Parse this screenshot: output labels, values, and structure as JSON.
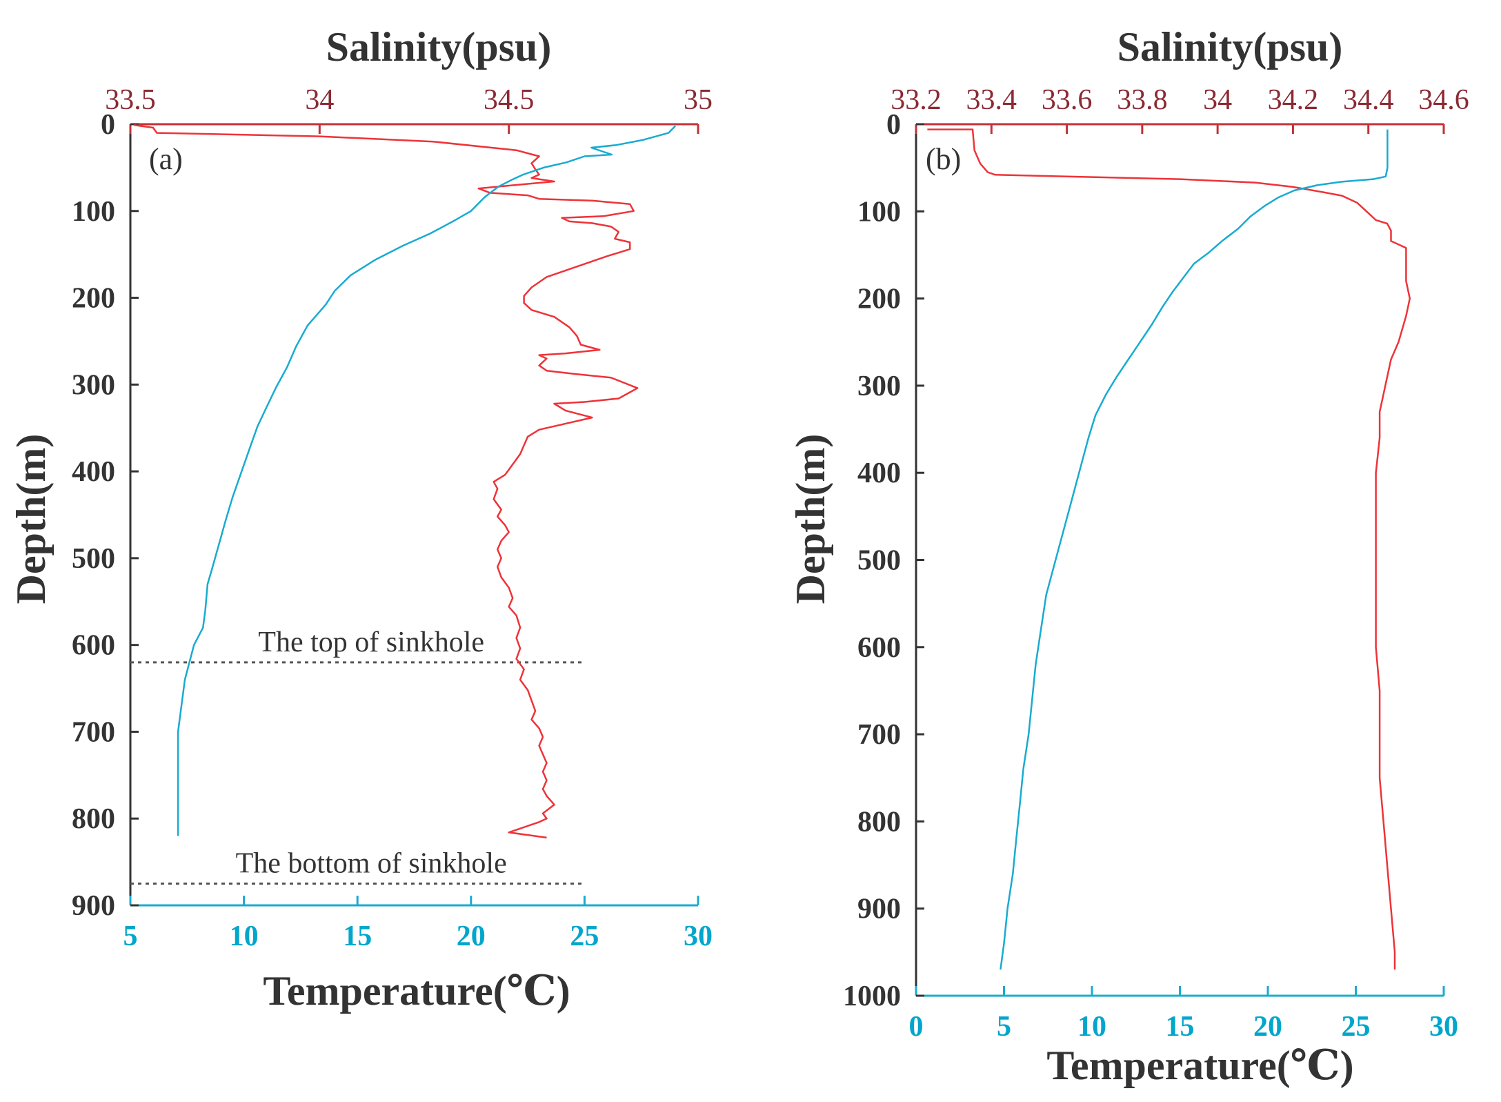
{
  "colors": {
    "salinity": "#ee3338",
    "salinity_axis": "#c62f37",
    "salinity_tick_text": "#8b2a33",
    "temperature": "#18abd1",
    "temperature_tick_text": "#00a6cc",
    "depth_axis": "#333333",
    "reference_line": "#555555"
  },
  "chart_data": [
    {
      "type": "line",
      "panel_label": "(a)",
      "top_axis_title": "Salinity(psu)",
      "bottom_axis_title": "Temperature(℃)",
      "left_axis_title": "Depth(m)",
      "salinity_range": [
        33.5,
        35
      ],
      "salinity_ticks": [
        33.5,
        34,
        34.5,
        35
      ],
      "salinity_tick_labels": [
        "33.5",
        "34",
        "34.5",
        "35"
      ],
      "temperature_range": [
        5,
        30
      ],
      "temperature_ticks": [
        5,
        10,
        15,
        20,
        25,
        30
      ],
      "temperature_tick_labels": [
        "5",
        "10",
        "15",
        "20",
        "25",
        "30"
      ],
      "depth_range": [
        0,
        900
      ],
      "depth_ticks": [
        0,
        100,
        200,
        300,
        400,
        500,
        600,
        700,
        800,
        900
      ],
      "depth_tick_labels": [
        "0",
        "100",
        "200",
        "300",
        "400",
        "500",
        "600",
        "700",
        "800",
        "900"
      ],
      "series": [
        {
          "name": "Salinity",
          "axis": "salinity",
          "points": [
            [
              33.51,
              1
            ],
            [
              33.56,
              4
            ],
            [
              33.57,
              10
            ],
            [
              34.0,
              14
            ],
            [
              34.3,
              20
            ],
            [
              34.52,
              30
            ],
            [
              34.58,
              37
            ],
            [
              34.56,
              45
            ],
            [
              34.57,
              52
            ],
            [
              34.58,
              58
            ],
            [
              34.56,
              62
            ],
            [
              34.62,
              66
            ],
            [
              34.52,
              70
            ],
            [
              34.42,
              74
            ],
            [
              34.45,
              79
            ],
            [
              34.55,
              82
            ],
            [
              34.58,
              86
            ],
            [
              34.72,
              88
            ],
            [
              34.82,
              92
            ],
            [
              34.83,
              100
            ],
            [
              34.75,
              106
            ],
            [
              34.64,
              108
            ],
            [
              34.66,
              112
            ],
            [
              34.72,
              114
            ],
            [
              34.77,
              118
            ],
            [
              34.79,
              124
            ],
            [
              34.78,
              132
            ],
            [
              34.82,
              136
            ],
            [
              34.82,
              144
            ],
            [
              34.76,
              152
            ],
            [
              34.68,
              164
            ],
            [
              34.6,
              176
            ],
            [
              34.56,
              188
            ],
            [
              34.54,
              198
            ],
            [
              34.54,
              206
            ],
            [
              34.56,
              214
            ],
            [
              34.62,
              222
            ],
            [
              34.66,
              234
            ],
            [
              34.68,
              244
            ],
            [
              34.69,
              254
            ],
            [
              34.74,
              260
            ],
            [
              34.65,
              264
            ],
            [
              34.58,
              266
            ],
            [
              34.6,
              270
            ],
            [
              34.58,
              278
            ],
            [
              34.6,
              284
            ],
            [
              34.68,
              288
            ],
            [
              34.77,
              292
            ],
            [
              34.84,
              304
            ],
            [
              34.79,
              316
            ],
            [
              34.7,
              320
            ],
            [
              34.62,
              322
            ],
            [
              34.65,
              330
            ],
            [
              34.72,
              338
            ],
            [
              34.64,
              346
            ],
            [
              34.58,
              352
            ],
            [
              34.55,
              360
            ],
            [
              34.54,
              370
            ],
            [
              34.53,
              380
            ],
            [
              34.51,
              392
            ],
            [
              34.49,
              404
            ],
            [
              34.46,
              412
            ],
            [
              34.47,
              420
            ],
            [
              34.46,
              432
            ],
            [
              34.48,
              444
            ],
            [
              34.47,
              452
            ],
            [
              34.49,
              462
            ],
            [
              34.5,
              470
            ],
            [
              34.48,
              480
            ],
            [
              34.47,
              490
            ],
            [
              34.48,
              500
            ],
            [
              34.47,
              510
            ],
            [
              34.48,
              522
            ],
            [
              34.5,
              534
            ],
            [
              34.51,
              546
            ],
            [
              34.5,
              556
            ],
            [
              34.52,
              566
            ],
            [
              34.53,
              580
            ],
            [
              34.52,
              592
            ],
            [
              34.53,
              604
            ],
            [
              34.52,
              616
            ],
            [
              34.54,
              628
            ],
            [
              34.53,
              640
            ],
            [
              34.55,
              652
            ],
            [
              34.56,
              664
            ],
            [
              34.57,
              676
            ],
            [
              34.56,
              686
            ],
            [
              34.58,
              696
            ],
            [
              34.59,
              706
            ],
            [
              34.58,
              716
            ],
            [
              34.59,
              726
            ],
            [
              34.6,
              736
            ],
            [
              34.59,
              746
            ],
            [
              34.6,
              756
            ],
            [
              34.59,
              766
            ],
            [
              34.6,
              774
            ],
            [
              34.62,
              784
            ],
            [
              34.59,
              794
            ],
            [
              34.6,
              800
            ],
            [
              34.58,
              804
            ],
            [
              34.54,
              810
            ],
            [
              34.5,
              816
            ],
            [
              34.6,
              822
            ]
          ]
        },
        {
          "name": "Temperature",
          "axis": "temperature",
          "points": [
            [
              29.0,
              2
            ],
            [
              28.7,
              10
            ],
            [
              27.6,
              18
            ],
            [
              26.4,
              24
            ],
            [
              25.3,
              27
            ],
            [
              26.2,
              35
            ],
            [
              25.0,
              37
            ],
            [
              24.2,
              44
            ],
            [
              23.2,
              50
            ],
            [
              22.3,
              58
            ],
            [
              21.8,
              64
            ],
            [
              21.2,
              72
            ],
            [
              20.6,
              84
            ],
            [
              20.0,
              100
            ],
            [
              19.2,
              112
            ],
            [
              18.2,
              126
            ],
            [
              17.0,
              140
            ],
            [
              15.8,
              156
            ],
            [
              14.7,
              174
            ],
            [
              14.0,
              192
            ],
            [
              13.6,
              208
            ],
            [
              12.8,
              232
            ],
            [
              12.3,
              256
            ],
            [
              11.9,
              280
            ],
            [
              11.4,
              304
            ],
            [
              11.0,
              326
            ],
            [
              10.6,
              348
            ],
            [
              10.3,
              370
            ],
            [
              9.9,
              400
            ],
            [
              9.5,
              430
            ],
            [
              9.2,
              456
            ],
            [
              8.9,
              484
            ],
            [
              8.6,
              512
            ],
            [
              8.4,
              530
            ],
            [
              8.3,
              560
            ],
            [
              8.2,
              580
            ],
            [
              8.0,
              590
            ],
            [
              7.8,
              600
            ],
            [
              7.6,
              620
            ],
            [
              7.4,
              640
            ],
            [
              7.3,
              660
            ],
            [
              7.2,
              680
            ],
            [
              7.1,
              700
            ],
            [
              7.1,
              740
            ],
            [
              7.1,
              780
            ],
            [
              7.1,
              820
            ]
          ]
        }
      ],
      "reference_lines": [
        {
          "label": "The top of sinkhole",
          "depth": 620,
          "x_range": [
            5,
            25
          ]
        },
        {
          "label": "The bottom of sinkhole",
          "depth": 875,
          "x_range": [
            5,
            25
          ]
        }
      ]
    },
    {
      "type": "line",
      "panel_label": "(b)",
      "top_axis_title": "Salinity(psu)",
      "bottom_axis_title": "Temperature(℃)",
      "left_axis_title": "Depth(m)",
      "salinity_range": [
        33.2,
        34.6
      ],
      "salinity_ticks": [
        33.2,
        33.4,
        33.6,
        33.8,
        34.0,
        34.2,
        34.4,
        34.6
      ],
      "salinity_tick_labels": [
        "33.2",
        "33.4",
        "33.6",
        "33.8",
        "34",
        "34.2",
        "34.4",
        "34.6"
      ],
      "temperature_range": [
        0,
        30
      ],
      "temperature_ticks": [
        0,
        5,
        10,
        15,
        20,
        25,
        30
      ],
      "temperature_tick_labels": [
        "0",
        "5",
        "10",
        "15",
        "20",
        "25",
        "30"
      ],
      "depth_range": [
        0,
        1000
      ],
      "depth_ticks": [
        0,
        100,
        200,
        300,
        400,
        500,
        600,
        700,
        800,
        900,
        1000
      ],
      "depth_tick_labels": [
        "0",
        "100",
        "200",
        "300",
        "400",
        "500",
        "600",
        "700",
        "800",
        "900",
        "1000"
      ],
      "series": [
        {
          "name": "Salinity",
          "axis": "salinity",
          "points": [
            [
              33.23,
              6
            ],
            [
              33.35,
              6
            ],
            [
              33.355,
              30
            ],
            [
              33.37,
              45
            ],
            [
              33.39,
              55
            ],
            [
              33.41,
              58
            ],
            [
              33.6,
              60
            ],
            [
              33.9,
              63
            ],
            [
              34.1,
              67
            ],
            [
              34.2,
              72
            ],
            [
              34.28,
              78
            ],
            [
              34.33,
              82
            ],
            [
              34.37,
              90
            ],
            [
              34.4,
              102
            ],
            [
              34.42,
              110
            ],
            [
              34.45,
              114
            ],
            [
              34.46,
              122
            ],
            [
              34.46,
              134
            ],
            [
              34.48,
              138
            ],
            [
              34.5,
              142
            ],
            [
              34.5,
              160
            ],
            [
              34.5,
              180
            ],
            [
              34.51,
              200
            ],
            [
              34.5,
              220
            ],
            [
              34.48,
              250
            ],
            [
              34.46,
              270
            ],
            [
              34.45,
              290
            ],
            [
              34.44,
              310
            ],
            [
              34.43,
              330
            ],
            [
              34.43,
              360
            ],
            [
              34.42,
              400
            ],
            [
              34.42,
              450
            ],
            [
              34.42,
              500
            ],
            [
              34.42,
              550
            ],
            [
              34.42,
              600
            ],
            [
              34.43,
              650
            ],
            [
              34.43,
              700
            ],
            [
              34.43,
              750
            ],
            [
              34.44,
              800
            ],
            [
              34.45,
              850
            ],
            [
              34.46,
              900
            ],
            [
              34.47,
              950
            ],
            [
              34.47,
              970
            ]
          ]
        },
        {
          "name": "Temperature",
          "axis": "temperature",
          "points": [
            [
              26.8,
              6
            ],
            [
              26.8,
              30
            ],
            [
              26.8,
              50
            ],
            [
              26.7,
              60
            ],
            [
              26.0,
              63
            ],
            [
              24.2,
              66
            ],
            [
              22.8,
              70
            ],
            [
              21.5,
              76
            ],
            [
              20.6,
              84
            ],
            [
              19.8,
              94
            ],
            [
              19.0,
              106
            ],
            [
              18.3,
              120
            ],
            [
              17.4,
              134
            ],
            [
              16.6,
              148
            ],
            [
              15.8,
              160
            ],
            [
              15.2,
              176
            ],
            [
              14.6,
              192
            ],
            [
              14.0,
              210
            ],
            [
              13.4,
              230
            ],
            [
              12.6,
              254
            ],
            [
              12.0,
              272
            ],
            [
              11.4,
              290
            ],
            [
              10.8,
              310
            ],
            [
              10.2,
              334
            ],
            [
              9.8,
              360
            ],
            [
              9.4,
              390
            ],
            [
              9.0,
              420
            ],
            [
              8.6,
              450
            ],
            [
              8.2,
              480
            ],
            [
              7.8,
              510
            ],
            [
              7.4,
              540
            ],
            [
              7.1,
              580
            ],
            [
              6.8,
              620
            ],
            [
              6.6,
              660
            ],
            [
              6.4,
              700
            ],
            [
              6.1,
              740
            ],
            [
              5.9,
              780
            ],
            [
              5.7,
              820
            ],
            [
              5.5,
              860
            ],
            [
              5.2,
              900
            ],
            [
              5.0,
              940
            ],
            [
              4.8,
              970
            ]
          ]
        }
      ],
      "reference_lines": []
    }
  ]
}
